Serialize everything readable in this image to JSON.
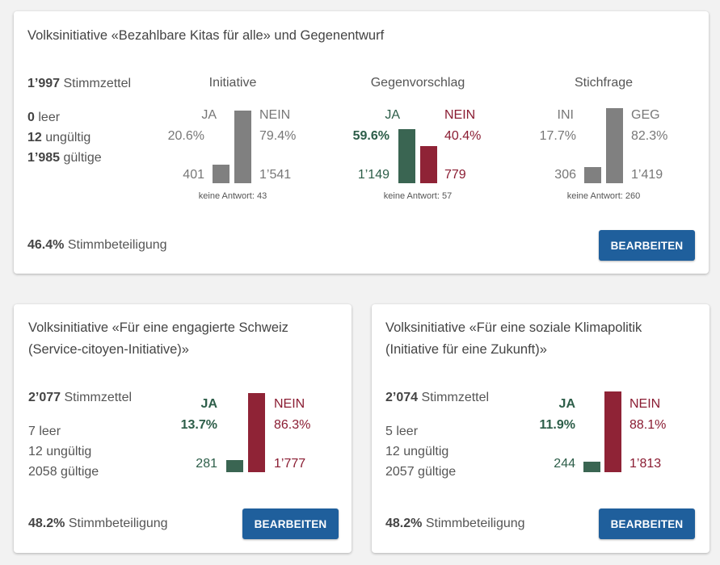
{
  "top": {
    "title": "Volksinitiative «Bezahlbare Kitas für alle» und Gegenentwurf",
    "ballots_num": "1’997",
    "ballots_label": "Stimmzettel",
    "blank_num": "0",
    "blank_label": "leer",
    "invalid_num": "12",
    "invalid_label": "ungültig",
    "valid_num": "1’985",
    "valid_label": "gültige",
    "turnout_pct": "46.4%",
    "turnout_label": "Stimmbeteiligung",
    "edit_label": "BEARBEITEN",
    "charts": [
      {
        "title": "Initiative",
        "left_label": "JA",
        "left_pct": "20.6%",
        "left_count": "401",
        "left_value": 20.6,
        "right_label": "NEIN",
        "right_pct": "79.4%",
        "right_count": "1’541",
        "right_value": 79.4,
        "no_answer": "keine Antwort: 43",
        "style": "gray"
      },
      {
        "title": "Gegenvorschlag",
        "left_label": "JA",
        "left_pct": "59.6%",
        "left_count": "1’149",
        "left_value": 59.6,
        "right_label": "NEIN",
        "right_pct": "40.4%",
        "right_count": "779",
        "right_value": 40.4,
        "no_answer": "keine Antwort: 57",
        "style": "color"
      },
      {
        "title": "Stichfrage",
        "left_label": "INI",
        "left_pct": "17.7%",
        "left_count": "306",
        "left_value": 17.7,
        "right_label": "GEG",
        "right_pct": "82.3%",
        "right_count": "1’419",
        "right_value": 82.3,
        "no_answer": "keine Antwort: 260",
        "style": "gray"
      }
    ]
  },
  "left": {
    "title_line1": "Volksinitiative «Für eine engagierte Schweiz",
    "title_line2": "(Service-citoyen-Initiative)»",
    "ballots_num": "2’077",
    "ballots_label": "Stimmzettel",
    "blank": "7 leer",
    "invalid": "12 ungültig",
    "valid": "2058 gültige",
    "turnout_pct": "48.2%",
    "turnout_label": "Stimmbeteiligung",
    "edit_label": "BEARBEITEN",
    "chart": {
      "left_label": "JA",
      "left_pct": "13.7%",
      "left_count": "281",
      "left_value": 13.7,
      "right_label": "NEIN",
      "right_pct": "86.3%",
      "right_count": "1’777",
      "right_value": 86.3
    }
  },
  "right": {
    "title_line1": "Volksinitiative «Für eine soziale Klimapolitik",
    "title_line2": "(Initiative für eine Zukunft)»",
    "ballots_num": "2’074",
    "ballots_label": "Stimmzettel",
    "blank": "5 leer",
    "invalid": "12 ungültig",
    "valid": "2057 gültige",
    "turnout_pct": "48.2%",
    "turnout_label": "Stimmbeteiligung",
    "edit_label": "BEARBEITEN",
    "chart": {
      "left_label": "JA",
      "left_pct": "11.9%",
      "left_count": "244",
      "left_value": 11.9,
      "right_label": "NEIN",
      "right_pct": "88.1%",
      "right_count": "1’813",
      "right_value": 88.1
    }
  }
}
